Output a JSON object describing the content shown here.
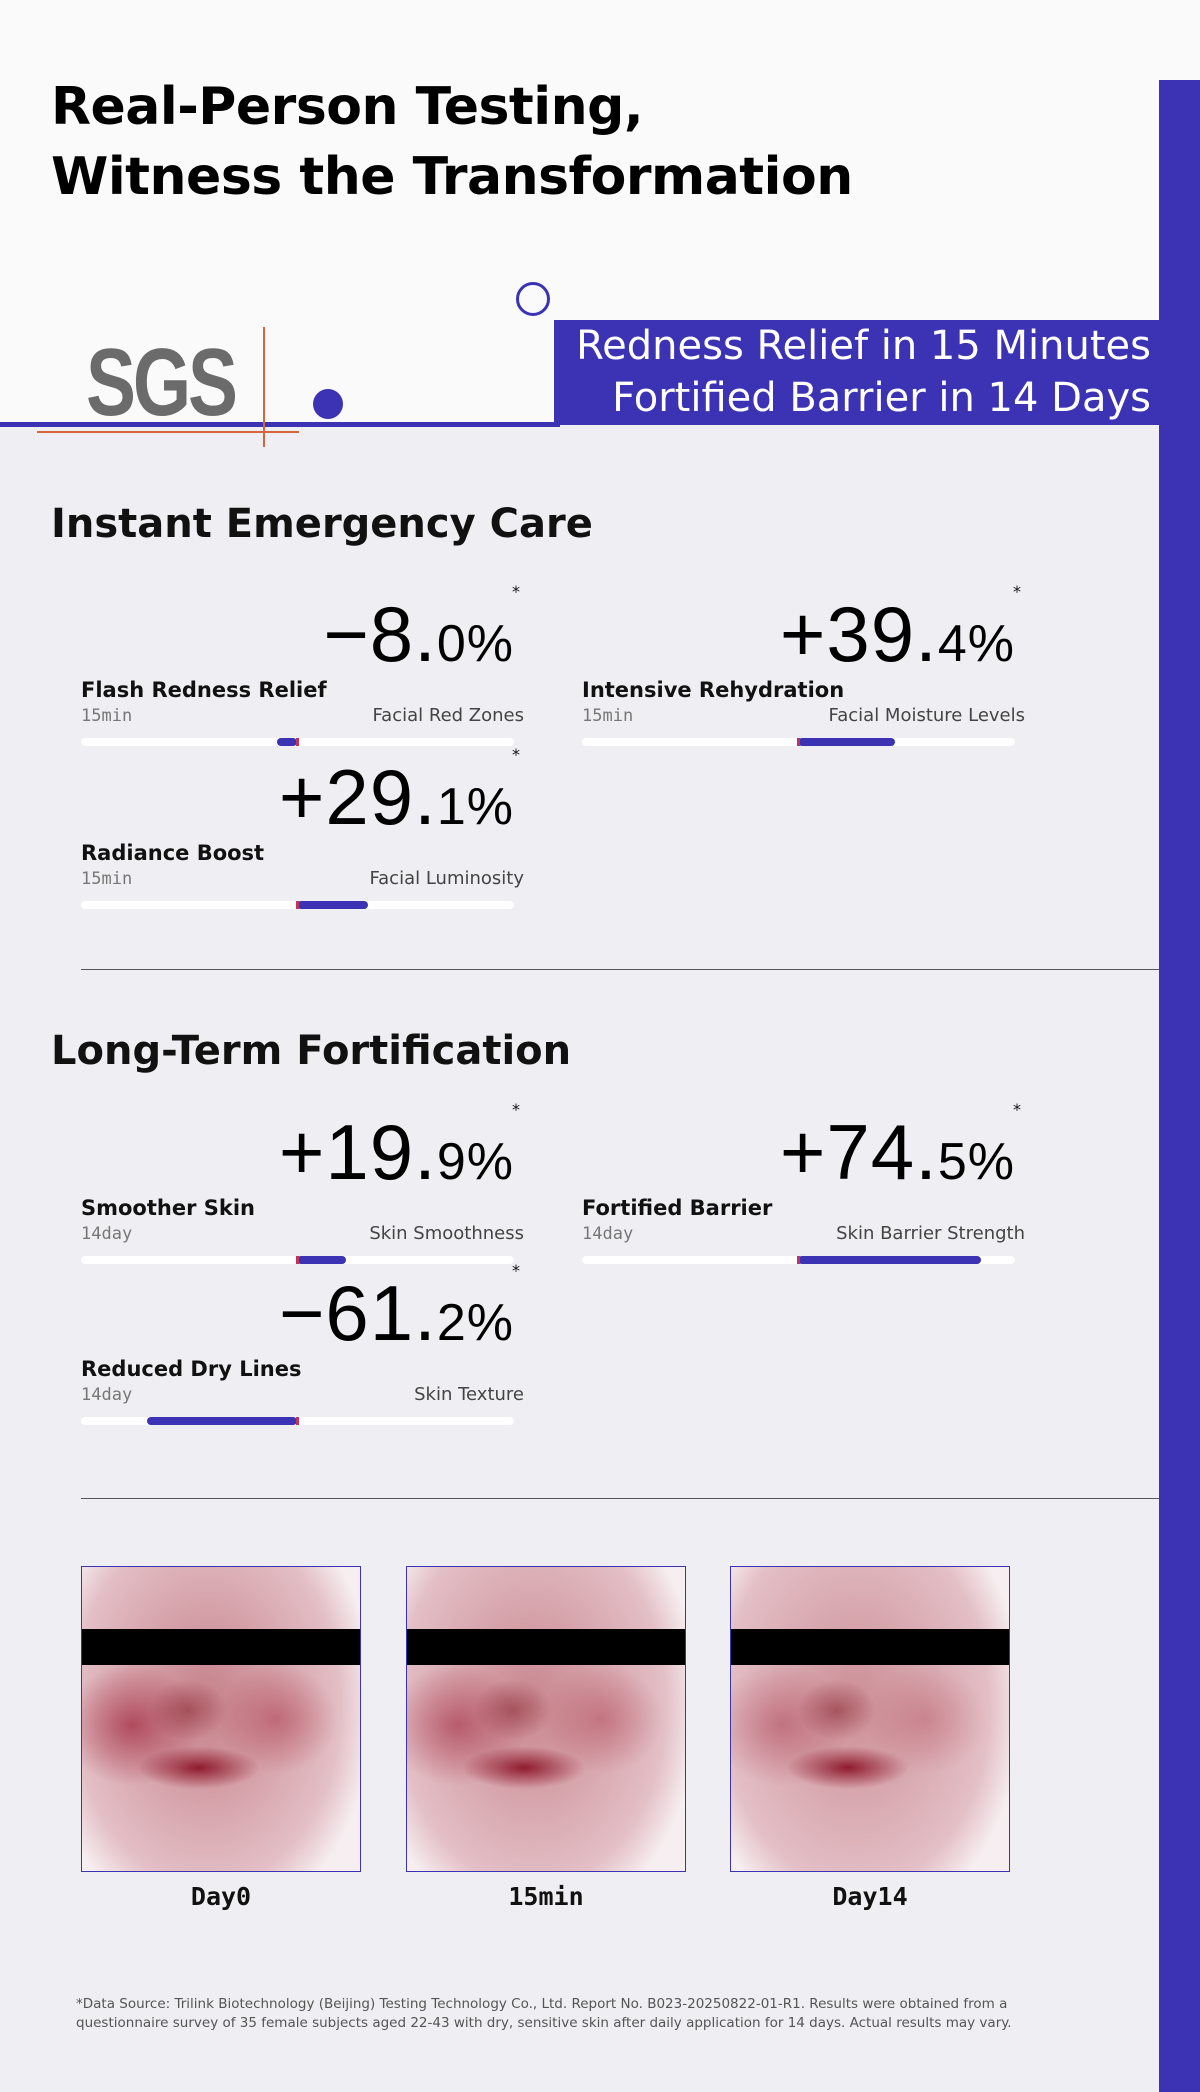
{
  "header": {
    "title_line1": "Real-Person Testing,",
    "title_line2": "Witness the Transformation",
    "logo": "SGS",
    "banner_line1": "Redness Relief in 15 Minutes",
    "banner_line2": "Fortified Barrier in 14 Days"
  },
  "colors": {
    "accent": "#3b33b3",
    "marker": "#c0335a"
  },
  "sections": [
    {
      "title": "Instant Emergency Care",
      "stats": [
        {
          "label": "Flash Redness Relief",
          "duration": "15min",
          "main": "−8.",
          "decimal": "0",
          "unit_sign": "%",
          "star": "*",
          "metric": "Facial Red Zones",
          "value": -8.0
        },
        {
          "label": "Intensive Rehydration",
          "duration": "15min",
          "main": "+39.",
          "decimal": "4",
          "unit_sign": "%",
          "star": "*",
          "metric": "Facial Moisture Levels",
          "value": 39.4
        },
        {
          "label": "Radiance Boost",
          "duration": "15min",
          "main": "+29.",
          "decimal": "1",
          "unit_sign": "%",
          "star": "*",
          "metric": "Facial Luminosity",
          "value": 29.1
        }
      ]
    },
    {
      "title": "Long-Term Fortification",
      "stats": [
        {
          "label": "Smoother Skin",
          "duration": "14day",
          "main": "+19.",
          "decimal": "9",
          "unit_sign": "%",
          "star": "*",
          "metric": "Skin Smoothness",
          "value": 19.9
        },
        {
          "label": "Fortified Barrier",
          "duration": "14day",
          "main": "+74.",
          "decimal": "5",
          "unit_sign": "%",
          "star": "*",
          "metric": "Skin Barrier Strength",
          "value": 74.5
        },
        {
          "label": "Reduced Dry Lines",
          "duration": "14day",
          "main": "−61.",
          "decimal": "2",
          "unit_sign": "%",
          "star": "*",
          "metric": "Skin Texture",
          "value": -61.2
        }
      ]
    }
  ],
  "photos": [
    {
      "caption": "Day0"
    },
    {
      "caption": "15min"
    },
    {
      "caption": "Day14"
    }
  ],
  "footnote": "*Data Source: Trilink Biotechnology (Beijing) Testing Technology Co., Ltd. Report No. B023-20250822-01-R1. Results were obtained from a questionnaire survey of 35 female subjects aged 22-43 with dry, sensitive skin after daily application for 14 days. Actual results may vary."
}
